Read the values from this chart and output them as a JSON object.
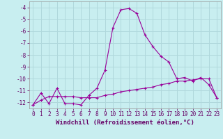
{
  "xlabel": "Windchill (Refroidissement éolien,°C)",
  "background_color": "#c8eef0",
  "grid_color": "#b0d8dc",
  "line_color": "#990099",
  "xlim": [
    -0.5,
    23.5
  ],
  "ylim": [
    -12.5,
    -3.5
  ],
  "yticks": [
    -12,
    -11,
    -10,
    -9,
    -8,
    -7,
    -6,
    -5,
    -4
  ],
  "xticks": [
    0,
    1,
    2,
    3,
    4,
    5,
    6,
    7,
    8,
    9,
    10,
    11,
    12,
    13,
    14,
    15,
    16,
    17,
    18,
    19,
    20,
    21,
    22,
    23
  ],
  "curve1_x": [
    0,
    1,
    2,
    3,
    4,
    5,
    6,
    7,
    8,
    9,
    10,
    11,
    12,
    13,
    14,
    15,
    16,
    17,
    18,
    19,
    20,
    21,
    22,
    23
  ],
  "curve1_y": [
    -12.2,
    -11.2,
    -12.1,
    -10.8,
    -12.1,
    -12.1,
    -12.2,
    -11.4,
    -10.8,
    -9.3,
    -5.7,
    -4.2,
    -4.1,
    -4.5,
    -6.3,
    -7.3,
    -8.1,
    -8.6,
    -10.0,
    -9.9,
    -10.2,
    -9.9,
    -10.5,
    -11.6
  ],
  "curve2_x": [
    0,
    1,
    2,
    3,
    4,
    5,
    6,
    7,
    8,
    9,
    10,
    11,
    12,
    13,
    14,
    15,
    16,
    17,
    18,
    19,
    20,
    21,
    22,
    23
  ],
  "curve2_y": [
    -12.2,
    -11.8,
    -11.5,
    -11.5,
    -11.5,
    -11.5,
    -11.6,
    -11.6,
    -11.6,
    -11.4,
    -11.3,
    -11.1,
    -11.0,
    -10.9,
    -10.8,
    -10.7,
    -10.5,
    -10.4,
    -10.2,
    -10.2,
    -10.1,
    -10.0,
    -10.0,
    -11.6
  ],
  "xlabel_fontsize": 6.5,
  "tick_fontsize": 5.5,
  "marker": "+"
}
